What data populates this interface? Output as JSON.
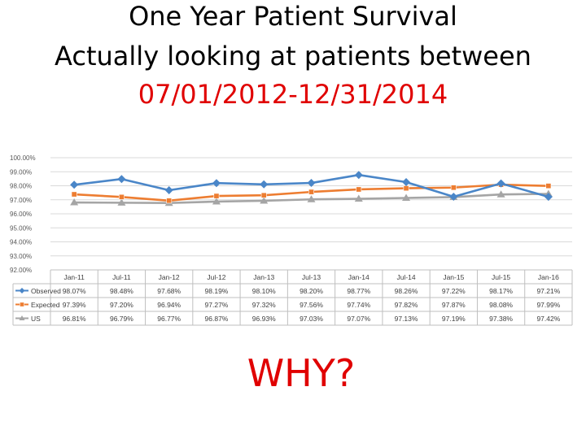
{
  "slide": {
    "title_line1": "One Year Patient Survival",
    "title_line2": "Actually looking at patients between",
    "title_line3": "07/01/2012-12/31/2014",
    "footer": "WHY?",
    "title_color": "#000000",
    "accent_color": "#e00000"
  },
  "chart_data": {
    "type": "line",
    "categories": [
      "Jan-11",
      "Jul-11",
      "Jan-12",
      "Jul-12",
      "Jan-13",
      "Jul-13",
      "Jan-14",
      "Jul-14",
      "Jan-15",
      "Jul-15",
      "Jan-16"
    ],
    "y_ticks": [
      "100.00%",
      "99.00%",
      "98.00%",
      "97.00%",
      "96.00%",
      "95.00%",
      "94.00%",
      "93.00%",
      "92.00%"
    ],
    "ylim": [
      92,
      100
    ],
    "grid": true,
    "legend": "data-table-rows",
    "series": [
      {
        "name": "Observed",
        "color": "#4a86c8",
        "marker": "diamond",
        "values": [
          98.07,
          98.48,
          97.68,
          98.19,
          98.1,
          98.2,
          98.77,
          98.26,
          97.22,
          98.17,
          97.21
        ],
        "labels": [
          "98.07%",
          "98.48%",
          "97.68%",
          "98.19%",
          "98.10%",
          "98.20%",
          "98.77%",
          "98.26%",
          "97.22%",
          "98.17%",
          "97.21%"
        ]
      },
      {
        "name": "Expected",
        "color": "#ed7d31",
        "marker": "square",
        "values": [
          97.39,
          97.2,
          96.94,
          97.27,
          97.32,
          97.56,
          97.74,
          97.82,
          97.87,
          98.08,
          97.99
        ],
        "labels": [
          "97.39%",
          "97.20%",
          "96.94%",
          "97.27%",
          "97.32%",
          "97.56%",
          "97.74%",
          "97.82%",
          "97.87%",
          "98.08%",
          "97.99%"
        ]
      },
      {
        "name": "US",
        "color": "#a5a5a5",
        "marker": "triangle",
        "values": [
          96.81,
          96.79,
          96.77,
          96.87,
          96.93,
          97.03,
          97.07,
          97.13,
          97.19,
          97.38,
          97.42
        ],
        "labels": [
          "96.81%",
          "96.79%",
          "96.77%",
          "96.87%",
          "96.93%",
          "97.03%",
          "97.07%",
          "97.13%",
          "97.19%",
          "97.38%",
          "97.42%"
        ]
      }
    ]
  }
}
